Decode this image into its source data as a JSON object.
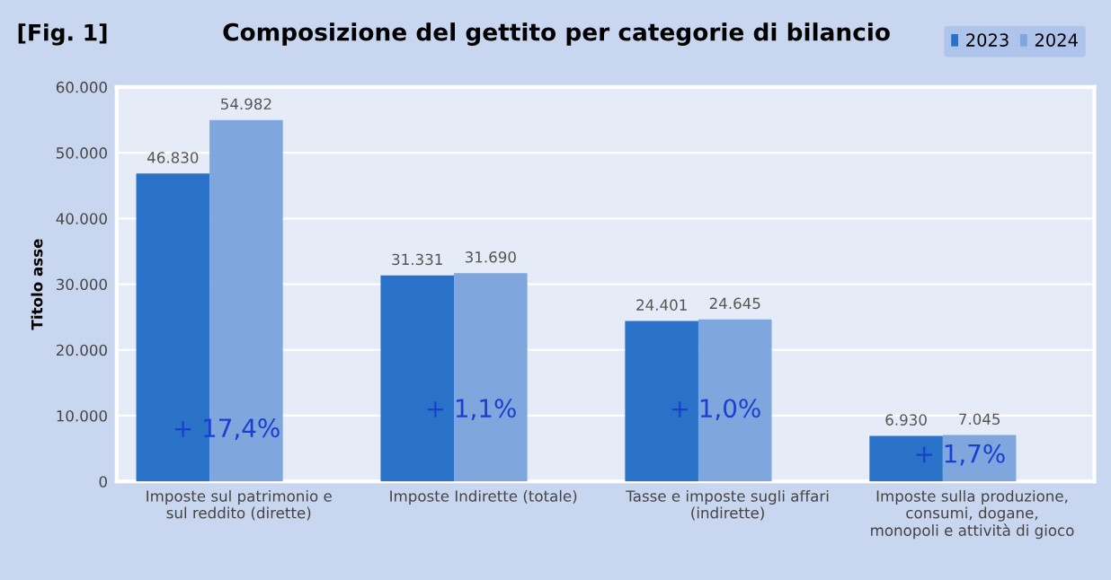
{
  "chart_data": {
    "type": "bar",
    "title": "Composizione del gettito per categorie di bilancio",
    "ylabel": "Titolo asse",
    "categories": [
      "Imposte sul patrimonio e sul reddito (dirette)",
      "Imposte Indirette (totale)",
      "Tasse e imposte sugli affari (indirette)",
      "Imposte sulla produzione, consumi, dogane, monopoli e attività di gioco"
    ],
    "series": [
      {
        "name": "2023",
        "color": "#2a72c8",
        "values": [
          46830,
          31331,
          24401,
          6930
        ],
        "value_labels": [
          "46.830",
          "31.331",
          "24.401",
          "6.930"
        ]
      },
      {
        "name": "2024",
        "color": "#7fa6dd",
        "values": [
          54982,
          31690,
          24645,
          7045
        ],
        "value_labels": [
          "54.982",
          "31.690",
          "24.645",
          "7.045"
        ]
      }
    ],
    "ylim": [
      0,
      60000
    ],
    "yticks": [
      {
        "value": 0,
        "label": "0"
      },
      {
        "value": 10000,
        "label": "10.000"
      },
      {
        "value": 20000,
        "label": "20.000"
      },
      {
        "value": 30000,
        "label": "30.000"
      },
      {
        "value": 40000,
        "label": "40.000"
      },
      {
        "value": 50000,
        "label": "50.000"
      },
      {
        "value": 60000,
        "label": "60.000"
      }
    ],
    "grid": "y",
    "legend": "top right",
    "annotations": [
      "[Fig. 1]",
      "+ 17,4%",
      "+ 1,1%",
      "+ 1,0%",
      "+ 1,7%"
    ]
  }
}
